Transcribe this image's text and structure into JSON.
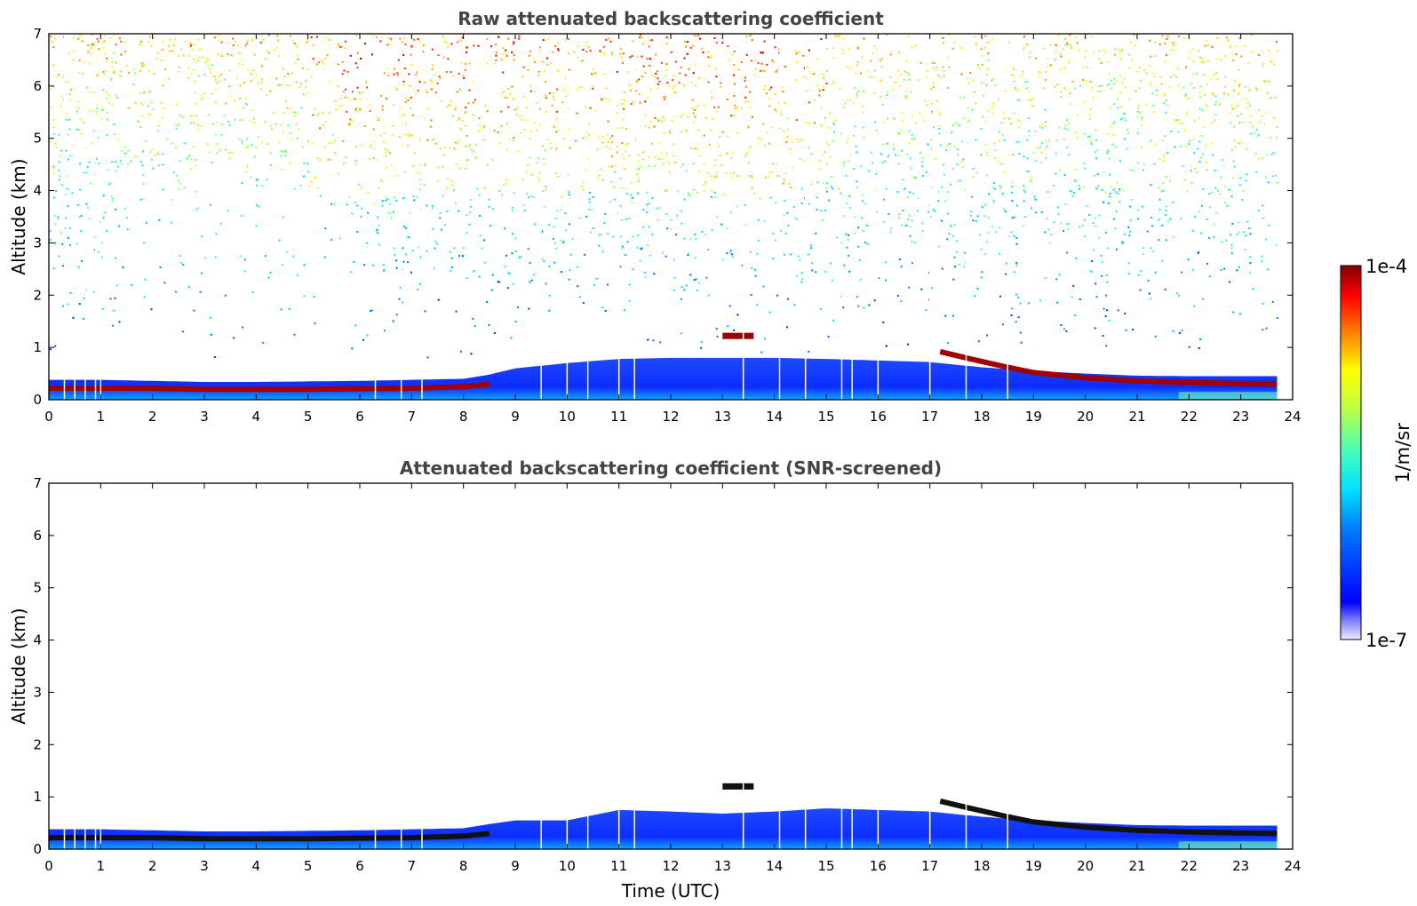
{
  "chart_data": [
    {
      "type": "heatmap",
      "title": "Raw attenuated backscattering coefficient",
      "xlabel": "",
      "ylabel": "Altitude (km)",
      "xlim": [
        0,
        24
      ],
      "ylim": [
        0,
        7
      ],
      "x_ticks": [
        "0",
        "1",
        "2",
        "3",
        "4",
        "5",
        "6",
        "7",
        "8",
        "9",
        "10",
        "11",
        "12",
        "13",
        "14",
        "15",
        "16",
        "17",
        "18",
        "19",
        "20",
        "21",
        "22",
        "23",
        "24"
      ],
      "y_ticks": [
        "0",
        "1",
        "2",
        "3",
        "4",
        "5",
        "6",
        "7"
      ],
      "grid": false,
      "layer_top_km": [
        [
          0,
          0.38
        ],
        [
          1,
          0.38
        ],
        [
          2,
          0.36
        ],
        [
          3,
          0.34
        ],
        [
          4,
          0.34
        ],
        [
          5,
          0.35
        ],
        [
          6,
          0.36
        ],
        [
          7,
          0.38
        ],
        [
          8,
          0.4
        ],
        [
          8.5,
          0.48
        ],
        [
          9,
          0.6
        ],
        [
          10,
          0.7
        ],
        [
          11,
          0.78
        ],
        [
          12,
          0.8
        ],
        [
          13,
          0.8
        ],
        [
          14,
          0.8
        ],
        [
          15,
          0.78
        ],
        [
          16,
          0.75
        ],
        [
          17,
          0.72
        ],
        [
          18,
          0.62
        ],
        [
          19,
          0.55
        ],
        [
          20,
          0.5
        ],
        [
          21,
          0.46
        ],
        [
          22,
          0.45
        ],
        [
          23,
          0.45
        ],
        [
          23.7,
          0.45
        ]
      ],
      "peak_layer_km": [
        [
          0,
          0.22
        ],
        [
          1,
          0.22
        ],
        [
          2,
          0.22
        ],
        [
          3,
          0.2
        ],
        [
          4,
          0.2
        ],
        [
          5,
          0.2
        ],
        [
          6,
          0.21
        ],
        [
          7,
          0.22
        ],
        [
          8,
          0.25
        ],
        [
          8.5,
          0.3
        ],
        [
          17.2,
          0.92
        ],
        [
          17.7,
          0.8
        ],
        [
          18.5,
          0.62
        ],
        [
          19,
          0.52
        ],
        [
          20,
          0.42
        ],
        [
          21,
          0.36
        ],
        [
          22,
          0.33
        ],
        [
          23,
          0.31
        ],
        [
          23.7,
          0.3
        ]
      ],
      "elevated_layer": {
        "time_range": [
          13.0,
          13.6
        ],
        "altitude_km": 1.22
      },
      "data_end_time": 23.7,
      "upper_noise": "dense scattered returns above ~3 km, highest values (orange/red) between about 5–15 UTC"
    },
    {
      "type": "heatmap",
      "title": "Attenuated backscattering coefficient (SNR-screened)",
      "xlabel": "Time (UTC)",
      "ylabel": "Altitude (km)",
      "xlim": [
        0,
        24
      ],
      "ylim": [
        0,
        7
      ],
      "x_ticks": [
        "0",
        "1",
        "2",
        "3",
        "4",
        "5",
        "6",
        "7",
        "8",
        "9",
        "10",
        "11",
        "12",
        "13",
        "14",
        "15",
        "16",
        "17",
        "18",
        "19",
        "20",
        "21",
        "22",
        "23",
        "24"
      ],
      "y_ticks": [
        "0",
        "1",
        "2",
        "3",
        "4",
        "5",
        "6",
        "7"
      ],
      "grid": false,
      "layer_top_km": [
        [
          0,
          0.38
        ],
        [
          1,
          0.38
        ],
        [
          2,
          0.36
        ],
        [
          3,
          0.34
        ],
        [
          4,
          0.34
        ],
        [
          5,
          0.35
        ],
        [
          6,
          0.36
        ],
        [
          7,
          0.38
        ],
        [
          8,
          0.4
        ],
        [
          8.5,
          0.48
        ],
        [
          9,
          0.55
        ],
        [
          10,
          0.55
        ],
        [
          11,
          0.75
        ],
        [
          12,
          0.72
        ],
        [
          13,
          0.68
        ],
        [
          14,
          0.72
        ],
        [
          15,
          0.78
        ],
        [
          16,
          0.75
        ],
        [
          17,
          0.72
        ],
        [
          18,
          0.62
        ],
        [
          19,
          0.55
        ],
        [
          20,
          0.5
        ],
        [
          21,
          0.46
        ],
        [
          22,
          0.45
        ],
        [
          23,
          0.45
        ],
        [
          23.7,
          0.45
        ]
      ],
      "peak_layer_km": [
        [
          0,
          0.22
        ],
        [
          1,
          0.22
        ],
        [
          2,
          0.22
        ],
        [
          3,
          0.2
        ],
        [
          4,
          0.2
        ],
        [
          5,
          0.2
        ],
        [
          6,
          0.21
        ],
        [
          7,
          0.22
        ],
        [
          8,
          0.25
        ],
        [
          8.5,
          0.3
        ],
        [
          17.2,
          0.92
        ],
        [
          17.7,
          0.8
        ],
        [
          18.5,
          0.62
        ],
        [
          19,
          0.52
        ],
        [
          20,
          0.42
        ],
        [
          21,
          0.36
        ],
        [
          22,
          0.33
        ],
        [
          23,
          0.31
        ],
        [
          23.7,
          0.3
        ]
      ],
      "elevated_layer": {
        "time_range": [
          13.0,
          13.6
        ],
        "altitude_km": 1.2
      },
      "data_end_time": 23.7
    }
  ],
  "colorbar": {
    "max_label": "1e-4",
    "min_label": "1e-7",
    "unit_label": "1/m/sr",
    "colormap": "jet",
    "range": [
      1e-07,
      0.0001
    ],
    "scale": "log"
  }
}
